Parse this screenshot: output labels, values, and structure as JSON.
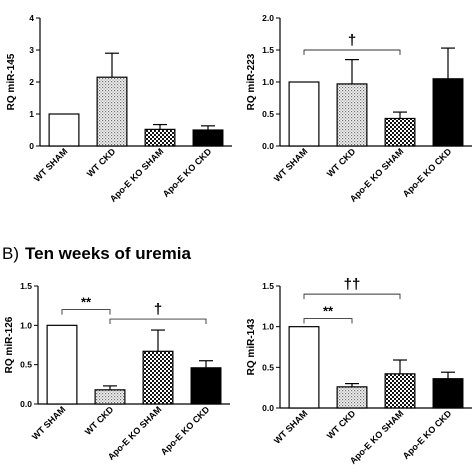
{
  "section_b": {
    "letter": "B)",
    "title": "Ten weeks of uremia"
  },
  "patterns": {
    "WT SHAM": "white",
    "WT CKD": "dots",
    "Apo-E KO SHAM": "checker",
    "Apo-E KO CKD": "black"
  },
  "chart_data": [
    {
      "type": "bar",
      "panel": "top-left",
      "ylabel": "RQ miR-145",
      "ylim": [
        0,
        4
      ],
      "yticks": [
        "0",
        "1",
        "2",
        "3",
        "4"
      ],
      "categories": [
        "WT SHAM",
        "WT CKD",
        "Apo-E KO SHAM",
        "Apo-E KO CKD"
      ],
      "values": [
        1.0,
        2.15,
        0.52,
        0.5
      ],
      "errors": [
        0,
        0.75,
        0.15,
        0.13
      ],
      "annotations": []
    },
    {
      "type": "bar",
      "panel": "top-right",
      "ylabel": "RQ miR-223",
      "ylim": [
        0,
        2.0
      ],
      "yticks": [
        "0.0",
        "0.5",
        "1.0",
        "1.5",
        "2.0"
      ],
      "categories": [
        "WT SHAM",
        "WT CKD",
        "Apo-E KO SHAM",
        "Apo-E KO CKD"
      ],
      "values": [
        1.0,
        0.97,
        0.43,
        1.05
      ],
      "errors": [
        0,
        0.38,
        0.1,
        0.48
      ],
      "annotations": [
        {
          "symbol": "†",
          "from": 0,
          "to": 2,
          "level": 1.5
        }
      ]
    },
    {
      "type": "bar",
      "panel": "bottom-left",
      "ylabel": "RQ miR-126",
      "ylim": [
        0,
        1.5
      ],
      "yticks": [
        "0.0",
        "0.5",
        "1.0",
        "1.5"
      ],
      "categories": [
        "WT SHAM",
        "WT CKD",
        "Apo-E KO SHAM",
        "Apo-E KO CKD"
      ],
      "values": [
        1.0,
        0.18,
        0.67,
        0.46
      ],
      "errors": [
        0,
        0.05,
        0.27,
        0.09
      ],
      "annotations": [
        {
          "symbol": "**",
          "from": 0,
          "to": 1,
          "level": 1.2
        },
        {
          "symbol": "†",
          "from": 1,
          "to": 3,
          "level": 1.08
        }
      ]
    },
    {
      "type": "bar",
      "panel": "bottom-right",
      "ylabel": "RQ miR-143",
      "ylim": [
        0,
        1.5
      ],
      "yticks": [
        "0.0",
        "0.5",
        "1.0",
        "1.5"
      ],
      "categories": [
        "WT SHAM",
        "WT CKD",
        "Apo-E KO SHAM",
        "Apo-E KO CKD"
      ],
      "values": [
        1.0,
        0.26,
        0.42,
        0.36
      ],
      "errors": [
        0,
        0.04,
        0.17,
        0.08
      ],
      "annotations": [
        {
          "symbol": "**",
          "from": 0,
          "to": 1,
          "level": 1.1
        },
        {
          "symbol": "††",
          "from": 0,
          "to": 2,
          "level": 1.4
        }
      ]
    }
  ]
}
